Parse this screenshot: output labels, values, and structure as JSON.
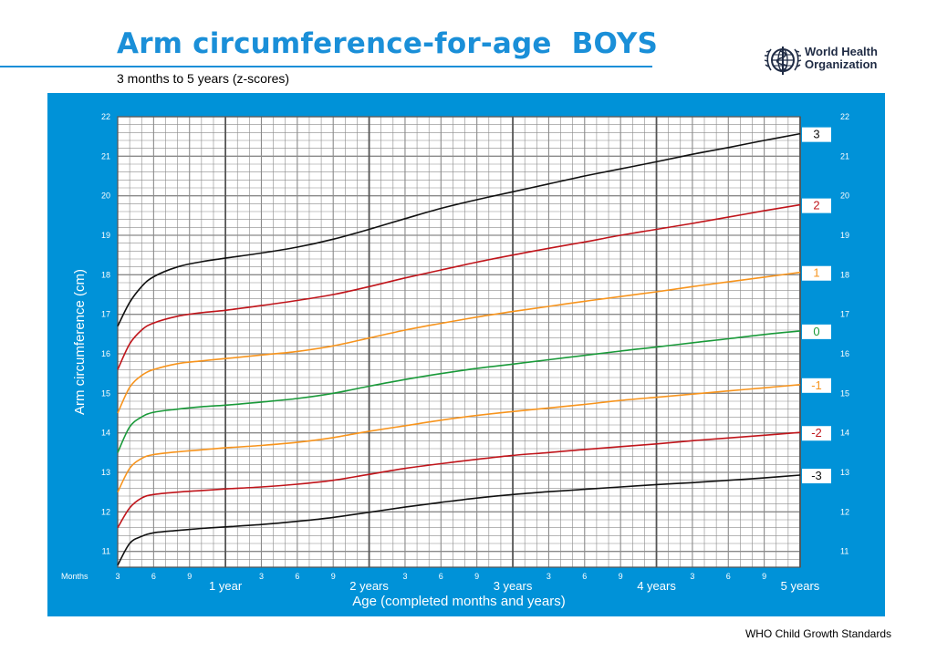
{
  "header": {
    "title": "Arm circumference-for-age  BOYS",
    "subtitle": "3 months to 5 years (z-scores)",
    "org_line1": "World Health",
    "org_line2": "Organization",
    "logo_icon": "who-emblem-icon"
  },
  "footer": {
    "text": "WHO Child Growth Standards"
  },
  "colors": {
    "panel": "#0092d8",
    "grid": "#8a8a8a",
    "sd3": "#111111",
    "sd2": "#c0151b",
    "sd1": "#f7941d",
    "sd0": "#1a9a3a"
  },
  "chart_data": {
    "type": "line",
    "title": "Arm circumference-for-age  BOYS",
    "subtitle": "3 months to 5 years (z-scores)",
    "xlabel": "Age (completed months and years)",
    "ylabel": "Arm circumference (cm)",
    "xlim": [
      3,
      60
    ],
    "ylim": [
      10.6,
      22
    ],
    "yticks": [
      11,
      12,
      13,
      14,
      15,
      16,
      17,
      18,
      19,
      20,
      21,
      22
    ],
    "x_axis_prefix": "Months",
    "x_month_ticks": [
      {
        "x": 3,
        "label": "3"
      },
      {
        "x": 6,
        "label": "6"
      },
      {
        "x": 9,
        "label": "9"
      },
      {
        "x": 15,
        "label": "3"
      },
      {
        "x": 18,
        "label": "6"
      },
      {
        "x": 21,
        "label": "9"
      },
      {
        "x": 27,
        "label": "3"
      },
      {
        "x": 30,
        "label": "6"
      },
      {
        "x": 33,
        "label": "9"
      },
      {
        "x": 39,
        "label": "3"
      },
      {
        "x": 42,
        "label": "6"
      },
      {
        "x": 45,
        "label": "9"
      },
      {
        "x": 51,
        "label": "3"
      },
      {
        "x": 54,
        "label": "6"
      },
      {
        "x": 57,
        "label": "9"
      }
    ],
    "x_year_ticks": [
      {
        "x": 12,
        "label": "1 year"
      },
      {
        "x": 24,
        "label": "2 years"
      },
      {
        "x": 36,
        "label": "3 years"
      },
      {
        "x": 48,
        "label": "4 years"
      },
      {
        "x": 60,
        "label": "5 years"
      }
    ],
    "grid": true,
    "x": [
      3,
      4,
      5,
      6,
      8,
      10,
      12,
      15,
      18,
      21,
      24,
      27,
      30,
      33,
      36,
      39,
      42,
      45,
      48,
      51,
      54,
      57,
      60
    ],
    "series": [
      {
        "name": "3",
        "color": "#111111",
        "values": [
          16.7,
          17.3,
          17.7,
          17.95,
          18.2,
          18.33,
          18.42,
          18.55,
          18.7,
          18.9,
          19.15,
          19.42,
          19.68,
          19.9,
          20.1,
          20.3,
          20.5,
          20.68,
          20.86,
          21.05,
          21.22,
          21.4,
          21.57
        ]
      },
      {
        "name": "2",
        "color": "#c0151b",
        "values": [
          15.6,
          16.25,
          16.6,
          16.78,
          16.95,
          17.04,
          17.1,
          17.22,
          17.35,
          17.5,
          17.7,
          17.92,
          18.12,
          18.32,
          18.5,
          18.67,
          18.83,
          19.0,
          19.15,
          19.3,
          19.46,
          19.62,
          19.77
        ]
      },
      {
        "name": "1",
        "color": "#f7941d",
        "values": [
          14.5,
          15.15,
          15.45,
          15.6,
          15.75,
          15.82,
          15.88,
          15.97,
          16.06,
          16.2,
          16.4,
          16.6,
          16.77,
          16.93,
          17.07,
          17.2,
          17.33,
          17.45,
          17.57,
          17.7,
          17.82,
          17.94,
          18.06
        ]
      },
      {
        "name": "0",
        "color": "#1a9a3a",
        "values": [
          13.5,
          14.15,
          14.4,
          14.52,
          14.6,
          14.66,
          14.7,
          14.78,
          14.87,
          15.0,
          15.18,
          15.35,
          15.5,
          15.63,
          15.74,
          15.85,
          15.96,
          16.07,
          16.17,
          16.28,
          16.38,
          16.49,
          16.58
        ]
      },
      {
        "name": "-1",
        "color": "#f7941d",
        "values": [
          12.5,
          13.1,
          13.35,
          13.45,
          13.52,
          13.57,
          13.62,
          13.68,
          13.76,
          13.88,
          14.04,
          14.18,
          14.32,
          14.44,
          14.54,
          14.63,
          14.72,
          14.82,
          14.9,
          14.98,
          15.06,
          15.14,
          15.22
        ]
      },
      {
        "name": "-2",
        "color": "#c0151b",
        "values": [
          11.6,
          12.1,
          12.35,
          12.44,
          12.5,
          12.54,
          12.58,
          12.63,
          12.7,
          12.8,
          12.95,
          13.1,
          13.22,
          13.33,
          13.43,
          13.5,
          13.58,
          13.65,
          13.72,
          13.8,
          13.87,
          13.94,
          14.01
        ]
      },
      {
        "name": "-3",
        "color": "#111111",
        "values": [
          10.65,
          11.2,
          11.38,
          11.47,
          11.53,
          11.58,
          11.62,
          11.68,
          11.76,
          11.86,
          11.99,
          12.12,
          12.24,
          12.35,
          12.44,
          12.51,
          12.57,
          12.63,
          12.69,
          12.74,
          12.8,
          12.86,
          12.93
        ]
      }
    ]
  }
}
